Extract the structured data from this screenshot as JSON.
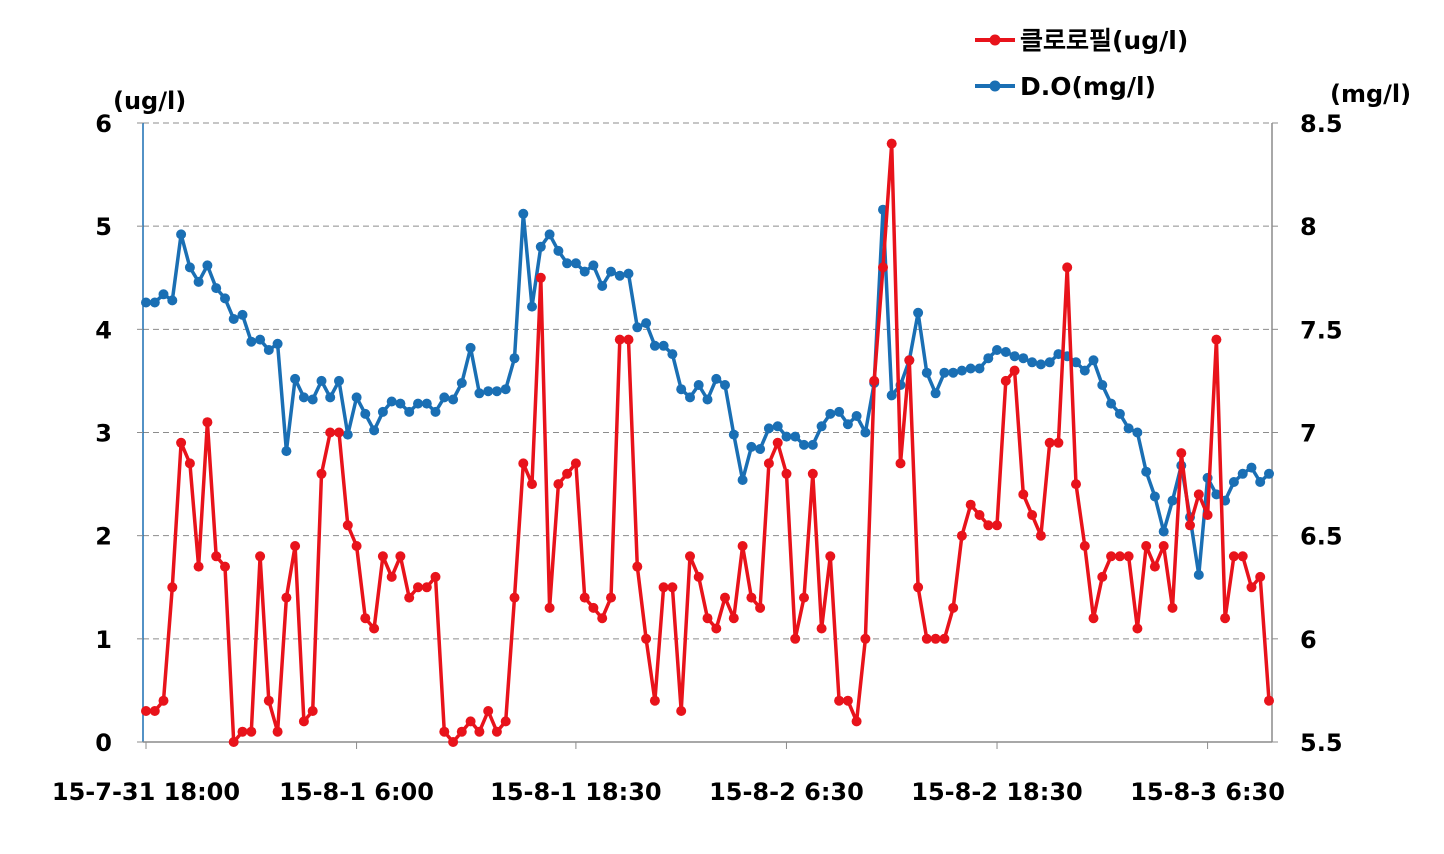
{
  "chart_data": {
    "type": "line",
    "x_tick_labels": [
      "15-7-31 18:00",
      "15-8-1 6:00",
      "15-8-1 18:30",
      "15-8-2 6:30",
      "15-8-2 18:30",
      "15-8-3 6:30"
    ],
    "x_tick_index": [
      0,
      24,
      49,
      73,
      97,
      121
    ],
    "y_left": {
      "unit": "(ug/l)",
      "ylim": [
        0,
        6
      ],
      "ticks": [
        "0",
        "1",
        "2",
        "3",
        "4",
        "5",
        "6"
      ]
    },
    "y_right": {
      "unit": "(mg/l)",
      "ylim": [
        5.5,
        8.5
      ],
      "ticks": [
        "5.5",
        "6",
        "6.5",
        "7",
        "7.5",
        "8",
        "8.5"
      ]
    },
    "grid": "horizontal dashed",
    "legend_position": "top-right",
    "series": [
      {
        "name": "클로로필(ug/l)",
        "axis": "left",
        "color": "#e8131b",
        "values": [
          0.3,
          0.3,
          0.4,
          1.5,
          2.9,
          2.7,
          1.7,
          3.1,
          1.8,
          1.7,
          0.0,
          0.1,
          0.1,
          1.8,
          0.4,
          0.1,
          1.4,
          1.9,
          0.2,
          0.3,
          2.6,
          3.0,
          3.0,
          2.1,
          1.9,
          1.2,
          1.1,
          1.8,
          1.6,
          1.8,
          1.4,
          1.5,
          1.5,
          1.6,
          0.1,
          0.0,
          0.1,
          0.2,
          0.1,
          0.3,
          0.1,
          0.2,
          1.4,
          2.7,
          2.5,
          4.5,
          1.3,
          2.5,
          2.6,
          2.7,
          1.4,
          1.3,
          1.2,
          1.4,
          3.9,
          3.9,
          1.7,
          1.0,
          0.4,
          1.5,
          1.5,
          0.3,
          1.8,
          1.6,
          1.2,
          1.1,
          1.4,
          1.2,
          1.9,
          1.4,
          1.3,
          2.7,
          2.9,
          2.6,
          1.0,
          1.4,
          2.6,
          1.1,
          1.8,
          0.4,
          0.4,
          0.2,
          1.0,
          3.5,
          4.6,
          5.8,
          2.7,
          3.7,
          1.5,
          1.0,
          1.0,
          1.0,
          1.3,
          2.0,
          2.3,
          2.2,
          2.1,
          2.1,
          3.5,
          3.6,
          2.4,
          2.2,
          2.0,
          2.9,
          2.9,
          4.6,
          2.5,
          1.9,
          1.2,
          1.6,
          1.8,
          1.8,
          1.8,
          1.1,
          1.9,
          1.7,
          1.9,
          1.3,
          2.8,
          2.1,
          2.4,
          2.2,
          3.9,
          1.2,
          1.8,
          1.8,
          1.5,
          1.6,
          0.4
        ]
      },
      {
        "name": "D.O(mg/l)",
        "axis": "right",
        "color": "#1a6fb4",
        "values": [
          7.63,
          7.63,
          7.67,
          7.64,
          7.96,
          7.8,
          7.73,
          7.81,
          7.7,
          7.65,
          7.55,
          7.57,
          7.44,
          7.45,
          7.4,
          7.43,
          6.91,
          7.26,
          7.17,
          7.16,
          7.25,
          7.17,
          7.25,
          6.99,
          7.17,
          7.09,
          7.01,
          7.1,
          7.15,
          7.14,
          7.1,
          7.14,
          7.14,
          7.1,
          7.17,
          7.16,
          7.24,
          7.41,
          7.19,
          7.2,
          7.2,
          7.21,
          7.36,
          8.06,
          7.61,
          7.9,
          7.96,
          7.88,
          7.82,
          7.82,
          7.78,
          7.81,
          7.71,
          7.78,
          7.76,
          7.77,
          7.51,
          7.53,
          7.42,
          7.42,
          7.38,
          7.21,
          7.17,
          7.23,
          7.16,
          7.26,
          7.23,
          6.99,
          6.77,
          6.93,
          6.92,
          7.02,
          7.03,
          6.98,
          6.98,
          6.94,
          6.94,
          7.03,
          7.09,
          7.1,
          7.04,
          7.08,
          7.0,
          7.24,
          8.08,
          7.18,
          7.23,
          7.35,
          7.58,
          7.29,
          7.19,
          7.29,
          7.29,
          7.3,
          7.31,
          7.31,
          7.36,
          7.4,
          7.39,
          7.37,
          7.36,
          7.34,
          7.33,
          7.34,
          7.38,
          7.37,
          7.34,
          7.3,
          7.35,
          7.23,
          7.14,
          7.09,
          7.02,
          7.0,
          6.81,
          6.69,
          6.52,
          6.67,
          6.84,
          6.59,
          6.31,
          6.78,
          6.7,
          6.67,
          6.76,
          6.8,
          6.83,
          6.76,
          6.8
        ]
      }
    ]
  }
}
